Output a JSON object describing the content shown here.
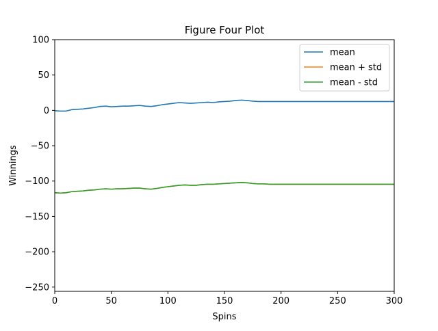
{
  "chart_data": {
    "type": "line",
    "title": "Figure Four Plot",
    "xlabel": "Spins",
    "ylabel": "Winnings",
    "xlim": [
      0,
      300
    ],
    "ylim": [
      -256,
      100
    ],
    "xticks": [
      0,
      50,
      100,
      150,
      200,
      250,
      300
    ],
    "yticks": [
      100,
      50,
      0,
      -50,
      -100,
      -150,
      -200,
      -250
    ],
    "xtick_labels": [
      "0",
      "50",
      "100",
      "150",
      "200",
      "250",
      "300"
    ],
    "ytick_labels": [
      "100",
      "50",
      "0",
      "−50",
      "−100",
      "−150",
      "−200",
      "−250"
    ],
    "grid": false,
    "legend_position": "top-right",
    "colors": {
      "mean": "#1f77b4",
      "mean_plus_std": "#ff7f0e",
      "mean_minus_std": "#2ca02c"
    },
    "x": [
      0,
      5,
      10,
      15,
      20,
      25,
      30,
      35,
      40,
      45,
      50,
      55,
      60,
      65,
      70,
      75,
      80,
      85,
      90,
      95,
      100,
      105,
      110,
      115,
      120,
      125,
      130,
      135,
      140,
      145,
      150,
      155,
      160,
      165,
      170,
      175,
      180,
      185,
      190,
      195,
      200,
      210,
      220,
      230,
      240,
      250,
      260,
      270,
      280,
      290,
      300
    ],
    "series": [
      {
        "name": "mean",
        "color": "#1f77b4",
        "values": [
          -0.5,
          -1,
          -1,
          1,
          1.5,
          2,
          3,
          4,
          5.5,
          6,
          5,
          5.5,
          6,
          6,
          6.5,
          7,
          6,
          5.5,
          6.5,
          8,
          9,
          10,
          11,
          10.5,
          10,
          10.5,
          11,
          11.5,
          11,
          12,
          12.5,
          13,
          14,
          14.5,
          14,
          13,
          12.5,
          12.5,
          12.5,
          12.5,
          12.5,
          12.5,
          12.5,
          12.5,
          12.5,
          12.5,
          12.5,
          12.5,
          12.5,
          12.5,
          12.5
        ]
      },
      {
        "name": "mean + std",
        "color": "#ff7f0e",
        "values": [
          -116.5,
          -117,
          -116.5,
          -115,
          -114.5,
          -114,
          -113,
          -112.5,
          -111.5,
          -111,
          -111.5,
          -111,
          -111,
          -110.5,
          -110,
          -110,
          -111,
          -111.5,
          -110.5,
          -109,
          -108,
          -107,
          -106,
          -105.5,
          -106,
          -106,
          -105,
          -104.5,
          -104.5,
          -104,
          -103.5,
          -103,
          -102.5,
          -102,
          -102.5,
          -103.5,
          -104,
          -104,
          -104.5,
          -104.5,
          -104.5,
          -104.5,
          -104.5,
          -104.5,
          -104.5,
          -104.5,
          -104.5,
          -104.5,
          -104.5,
          -104.5,
          -104.5
        ]
      },
      {
        "name": "mean - std",
        "color": "#2ca02c",
        "values": [
          -116.5,
          -117,
          -116.5,
          -115,
          -114.5,
          -114,
          -113,
          -112.5,
          -111.5,
          -111,
          -111.5,
          -111,
          -111,
          -110.5,
          -110,
          -110,
          -111,
          -111.5,
          -110.5,
          -109,
          -108,
          -107,
          -106,
          -105.5,
          -106,
          -106,
          -105,
          -104.5,
          -104.5,
          -104,
          -103.5,
          -103,
          -102.5,
          -102,
          -102.5,
          -103.5,
          -104,
          -104,
          -104.5,
          -104.5,
          -104.5,
          -104.5,
          -104.5,
          -104.5,
          -104.5,
          -104.5,
          -104.5,
          -104.5,
          -104.5,
          -104.5,
          -104.5
        ]
      }
    ]
  }
}
